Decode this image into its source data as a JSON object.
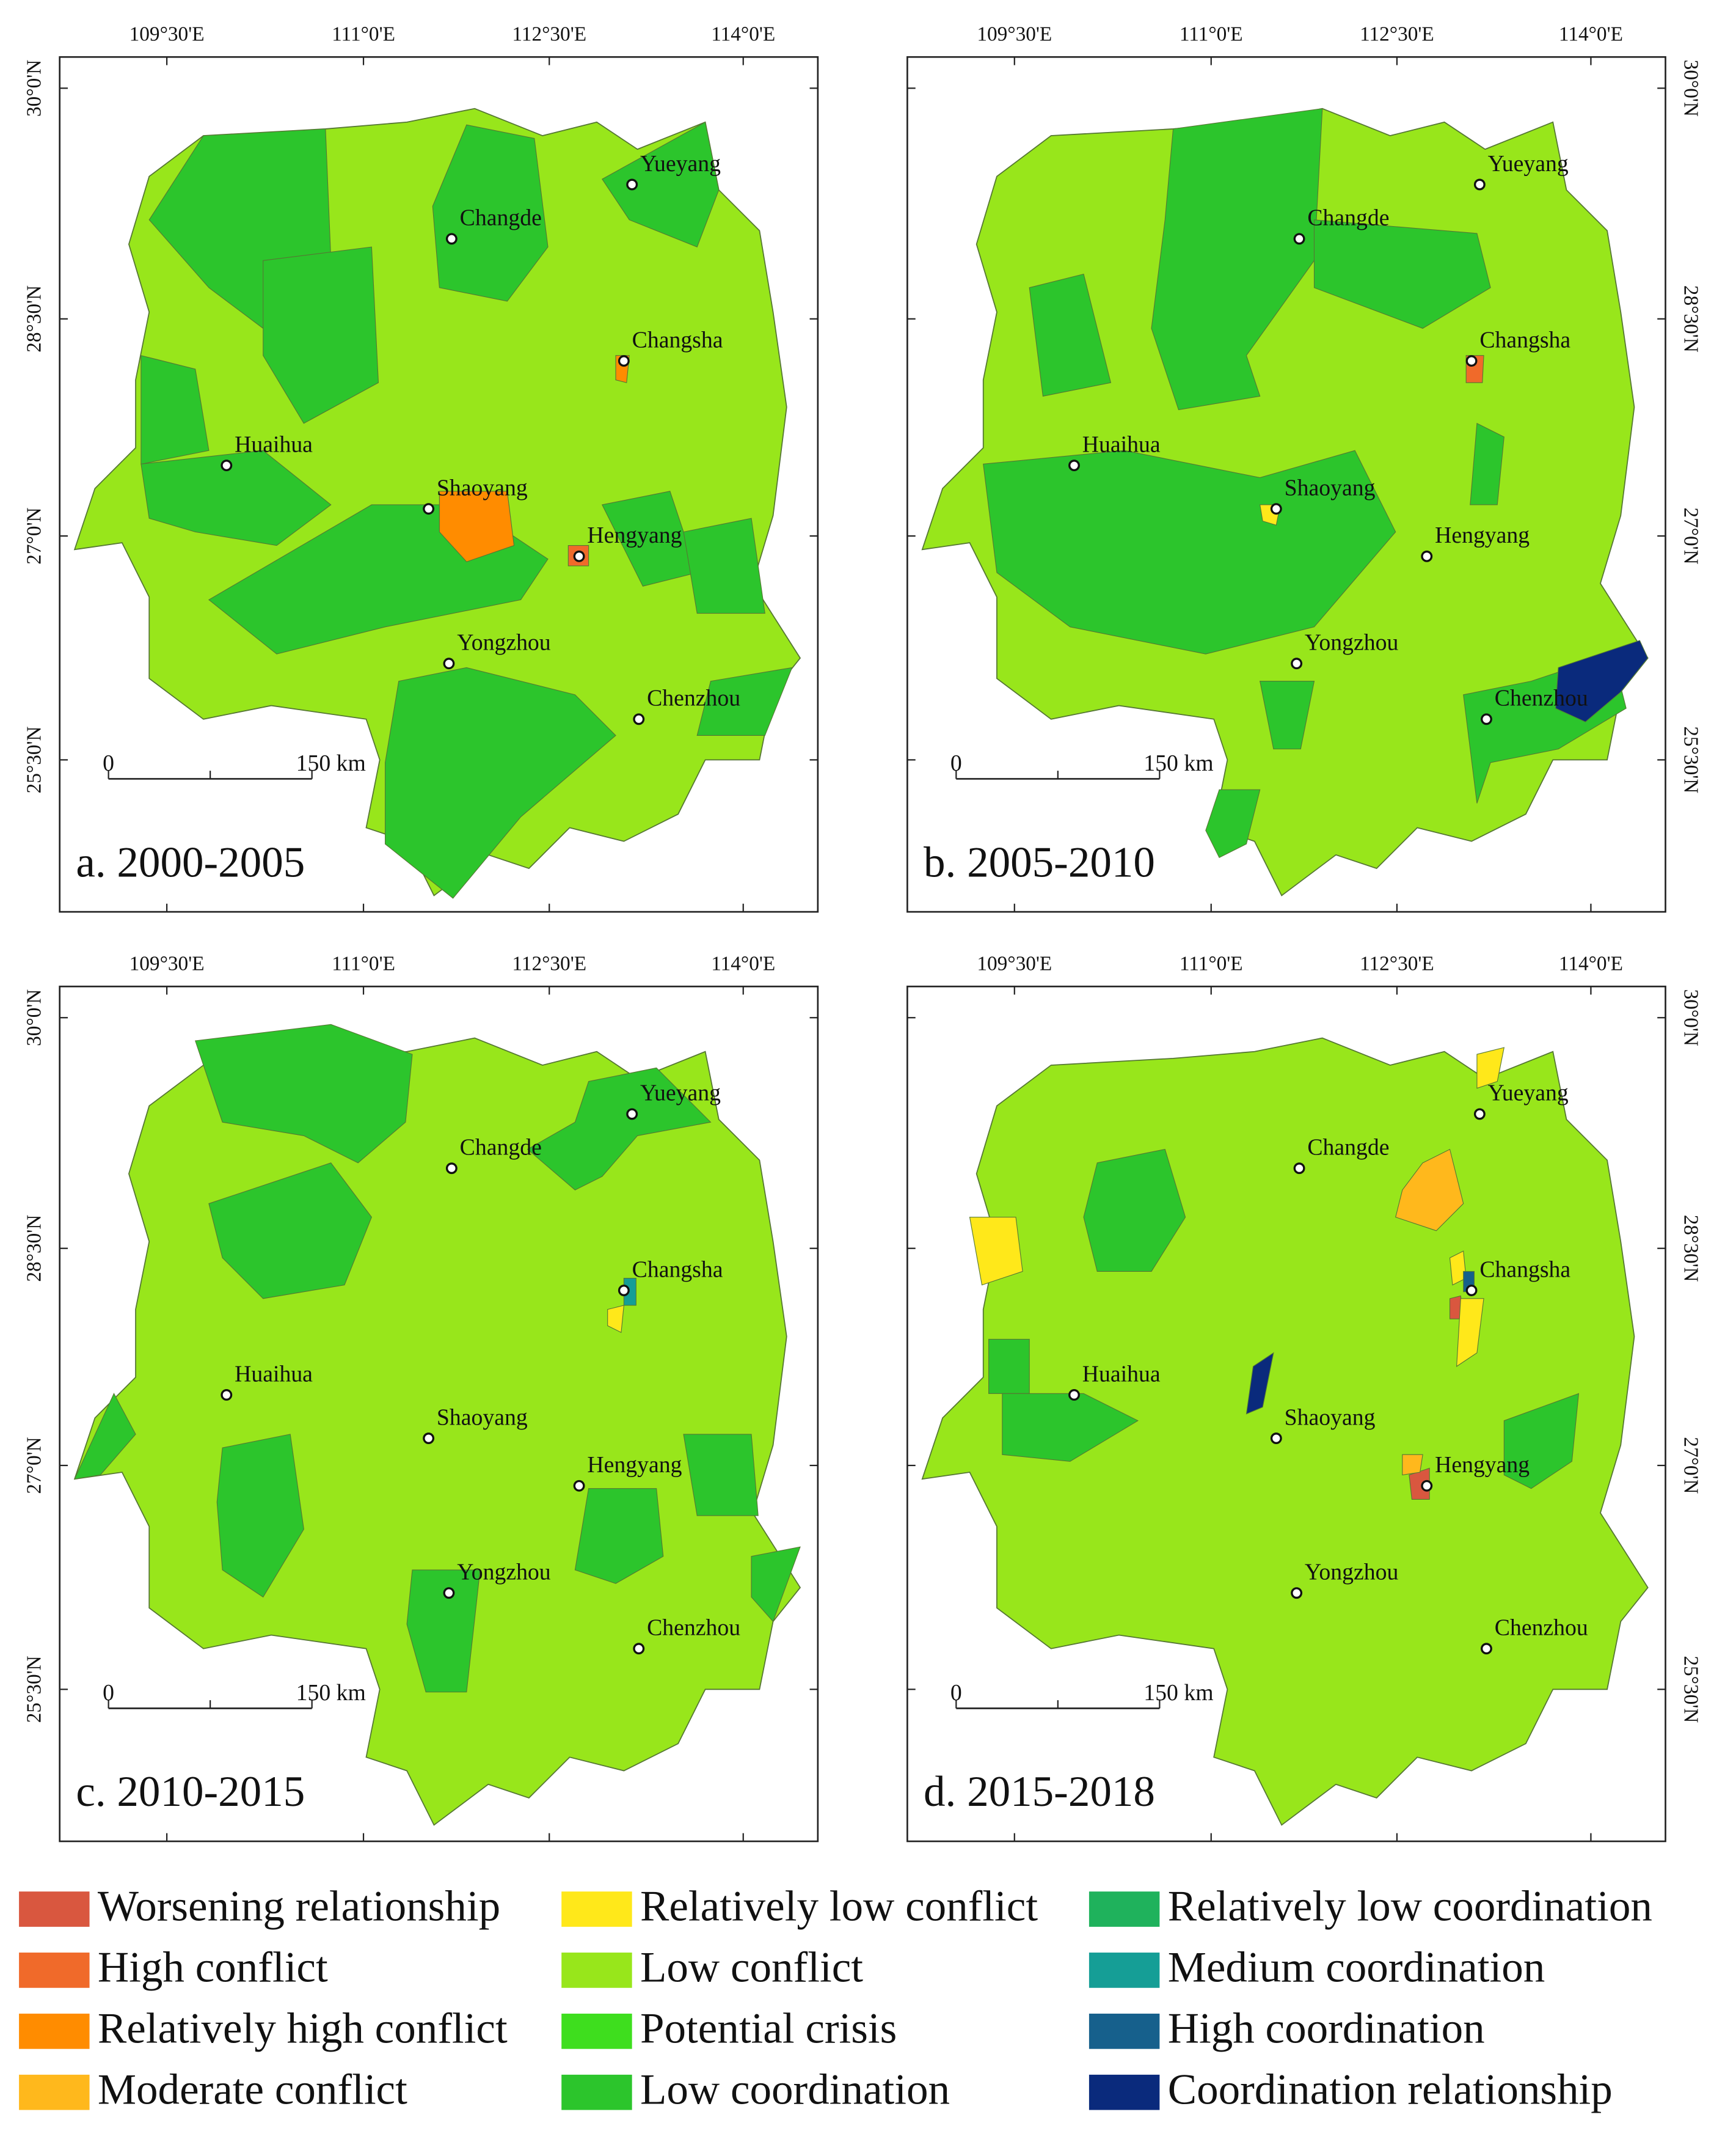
{
  "panels": [
    {
      "label": "a. 2000-2005"
    },
    {
      "label": "b. 2005-2010"
    },
    {
      "label": "c. 2010-2015"
    },
    {
      "label": "d. 2015-2018"
    }
  ],
  "lon_labels": [
    "109°30'E",
    "111°0'E",
    "112°30'E",
    "114°0'E"
  ],
  "lat_labels": [
    "30°0'N",
    "28°30'N",
    "27°0'N",
    "25°30'N"
  ],
  "cities": [
    "Yueyang",
    "Changde",
    "Changsha",
    "Huaihua",
    "Shaoyang",
    "Hengyang",
    "Yongzhou",
    "Chenzhou"
  ],
  "scale_bar": [
    "0",
    "150 km"
  ],
  "legend": [
    {
      "name": "Worsening relationship",
      "color": "#d9573f"
    },
    {
      "name": "High conflict",
      "color": "#f06a2a"
    },
    {
      "name": "Relatively high conflict",
      "color": "#ff8c00"
    },
    {
      "name": "Moderate conflict",
      "color": "#ffb81c"
    },
    {
      "name": "Relatively low conflict",
      "color": "#ffe81a"
    },
    {
      "name": "Low conflict",
      "color": "#98e61b"
    },
    {
      "name": "Potential crisis",
      "color": "#3ede1e"
    },
    {
      "name": "Low coordination",
      "color": "#2cc52c"
    },
    {
      "name": "Relatively low coordination",
      "color": "#1fb25c"
    },
    {
      "name": "Medium coordination",
      "color": "#159e96"
    },
    {
      "name": "High coordination",
      "color": "#16608c"
    },
    {
      "name": "Coordination relationship",
      "color": "#0a2a7c"
    }
  ]
}
